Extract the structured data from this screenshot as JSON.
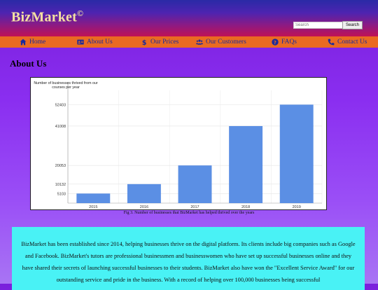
{
  "brand": {
    "name": "BizMarket",
    "mark": "©"
  },
  "search": {
    "placeholder": "Search",
    "button": "Search"
  },
  "nav": [
    {
      "label": "Home",
      "icon": "home-icon"
    },
    {
      "label": "About Us",
      "icon": "id-card-icon"
    },
    {
      "label": "Our Prices",
      "icon": "dollar-icon"
    },
    {
      "label": "Our Customers",
      "icon": "users-icon"
    },
    {
      "label": "FAQs",
      "icon": "question-icon"
    },
    {
      "label": "Contact Us",
      "icon": "phone-icon"
    }
  ],
  "page": {
    "title": "About Us"
  },
  "chart_data": {
    "type": "bar",
    "categories": [
      "2015",
      "2016",
      "2017",
      "2018",
      "2019"
    ],
    "values": [
      5103,
      10132,
      20053,
      41008,
      52403
    ],
    "ylabel": "Number of businesses thrived from our courses per year",
    "ytick_labels": [
      "5103",
      "10132",
      "20053",
      "41008",
      "52403"
    ],
    "ylim": [
      0,
      60000
    ],
    "grid": true,
    "bar_color": "#5b8fe4"
  },
  "caption": "Fig 3. Number of businesses that BizMarket has helped thrived over the years",
  "info": {
    "text": "BizMarket has been established since 2014, helping businesses thrive on the digital platform. Its clients include big companies such as Google and Facebook. BizMarket's tutors are professional businessmen and businesswomen who have set up successful businesses online and they have shared their secrets of launching successful businesses to their students. BizMarket also have won the \"Excellent Service Award\" for our outstanding service and pride in the business. With a record of helping over 100,000 businesses being successful"
  }
}
